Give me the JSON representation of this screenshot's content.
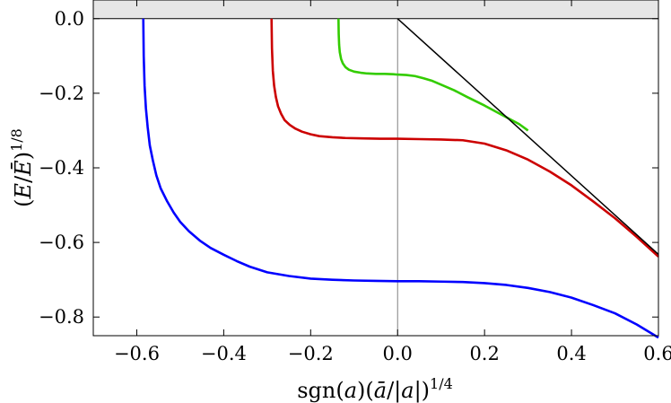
{
  "chart_data": {
    "type": "line",
    "title": "",
    "xlabel": "sgn(a)(ā/|a|)^1/4",
    "ylabel": "(E/Ē)^1/8",
    "xlim": [
      -0.7,
      0.6
    ],
    "ylim": [
      -0.85,
      0.05
    ],
    "grid": false,
    "legend": "none",
    "x_ticks": [
      "−0.6",
      "−0.4",
      "−0.2",
      "0.0",
      "0.2",
      "0.4",
      "0.6"
    ],
    "y_ticks": [
      "−0.8",
      "−0.6",
      "−0.4",
      "−0.2",
      "0.0"
    ],
    "x_tick_values": [
      -0.6,
      -0.4,
      -0.2,
      0.0,
      0.2,
      0.4,
      0.6
    ],
    "y_tick_values": [
      -0.8,
      -0.6,
      -0.4,
      -0.2,
      0.0
    ],
    "shaded_region": {
      "y": [
        0.0,
        0.05
      ],
      "color": "#e6e6e6"
    },
    "vertical_line": {
      "x": 0.0,
      "color": "#808080"
    },
    "series": [
      {
        "color": "#0000ff",
        "x": [
          -0.585,
          -0.584,
          -0.582,
          -0.579,
          -0.575,
          -0.57,
          -0.563,
          -0.555,
          -0.545,
          -0.53,
          -0.515,
          -0.5,
          -0.48,
          -0.455,
          -0.43,
          -0.4,
          -0.37,
          -0.34,
          -0.3,
          -0.25,
          -0.2,
          -0.15,
          -0.1,
          -0.05,
          0.0,
          0.05,
          0.1,
          0.15,
          0.2,
          0.25,
          0.3,
          0.35,
          0.4,
          0.45,
          0.5,
          0.55,
          0.6
        ],
        "y": [
          0.0,
          -0.1,
          -0.18,
          -0.24,
          -0.29,
          -0.34,
          -0.38,
          -0.42,
          -0.455,
          -0.49,
          -0.52,
          -0.545,
          -0.57,
          -0.595,
          -0.615,
          -0.633,
          -0.65,
          -0.665,
          -0.68,
          -0.69,
          -0.697,
          -0.7,
          -0.702,
          -0.703,
          -0.704,
          -0.704,
          -0.705,
          -0.706,
          -0.709,
          -0.714,
          -0.722,
          -0.733,
          -0.748,
          -0.768,
          -0.79,
          -0.82,
          -0.855
        ]
      },
      {
        "color": "#cc0000",
        "x": [
          -0.29,
          -0.289,
          -0.287,
          -0.284,
          -0.28,
          -0.275,
          -0.268,
          -0.26,
          -0.248,
          -0.235,
          -0.22,
          -0.2,
          -0.18,
          -0.15,
          -0.12,
          -0.08,
          -0.04,
          0.0,
          0.05,
          0.1,
          0.15,
          0.2,
          0.25,
          0.3,
          0.35,
          0.4,
          0.45,
          0.5,
          0.55,
          0.6
        ],
        "y": [
          0.0,
          -0.08,
          -0.14,
          -0.18,
          -0.21,
          -0.235,
          -0.255,
          -0.272,
          -0.285,
          -0.295,
          -0.303,
          -0.31,
          -0.315,
          -0.318,
          -0.32,
          -0.321,
          -0.322,
          -0.322,
          -0.323,
          -0.324,
          -0.326,
          -0.335,
          -0.353,
          -0.378,
          -0.41,
          -0.447,
          -0.49,
          -0.535,
          -0.585,
          -0.638
        ]
      },
      {
        "color": "#33cc00",
        "x": [
          -0.136,
          -0.1355,
          -0.1345,
          -0.133,
          -0.13,
          -0.126,
          -0.12,
          -0.112,
          -0.1,
          -0.085,
          -0.07,
          -0.05,
          -0.03,
          -0.01,
          0.0,
          0.02,
          0.04,
          0.06,
          0.08,
          0.1,
          0.13,
          0.16,
          0.2,
          0.24,
          0.28,
          0.3
        ],
        "y": [
          0.0,
          -0.04,
          -0.07,
          -0.09,
          -0.108,
          -0.12,
          -0.13,
          -0.137,
          -0.142,
          -0.145,
          -0.147,
          -0.148,
          -0.148,
          -0.149,
          -0.15,
          -0.151,
          -0.154,
          -0.16,
          -0.167,
          -0.177,
          -0.192,
          -0.21,
          -0.233,
          -0.258,
          -0.283,
          -0.3
        ]
      },
      {
        "color": "#000000",
        "x": [
          0.0,
          0.6
        ],
        "y": [
          0.0,
          -0.632
        ]
      }
    ]
  }
}
